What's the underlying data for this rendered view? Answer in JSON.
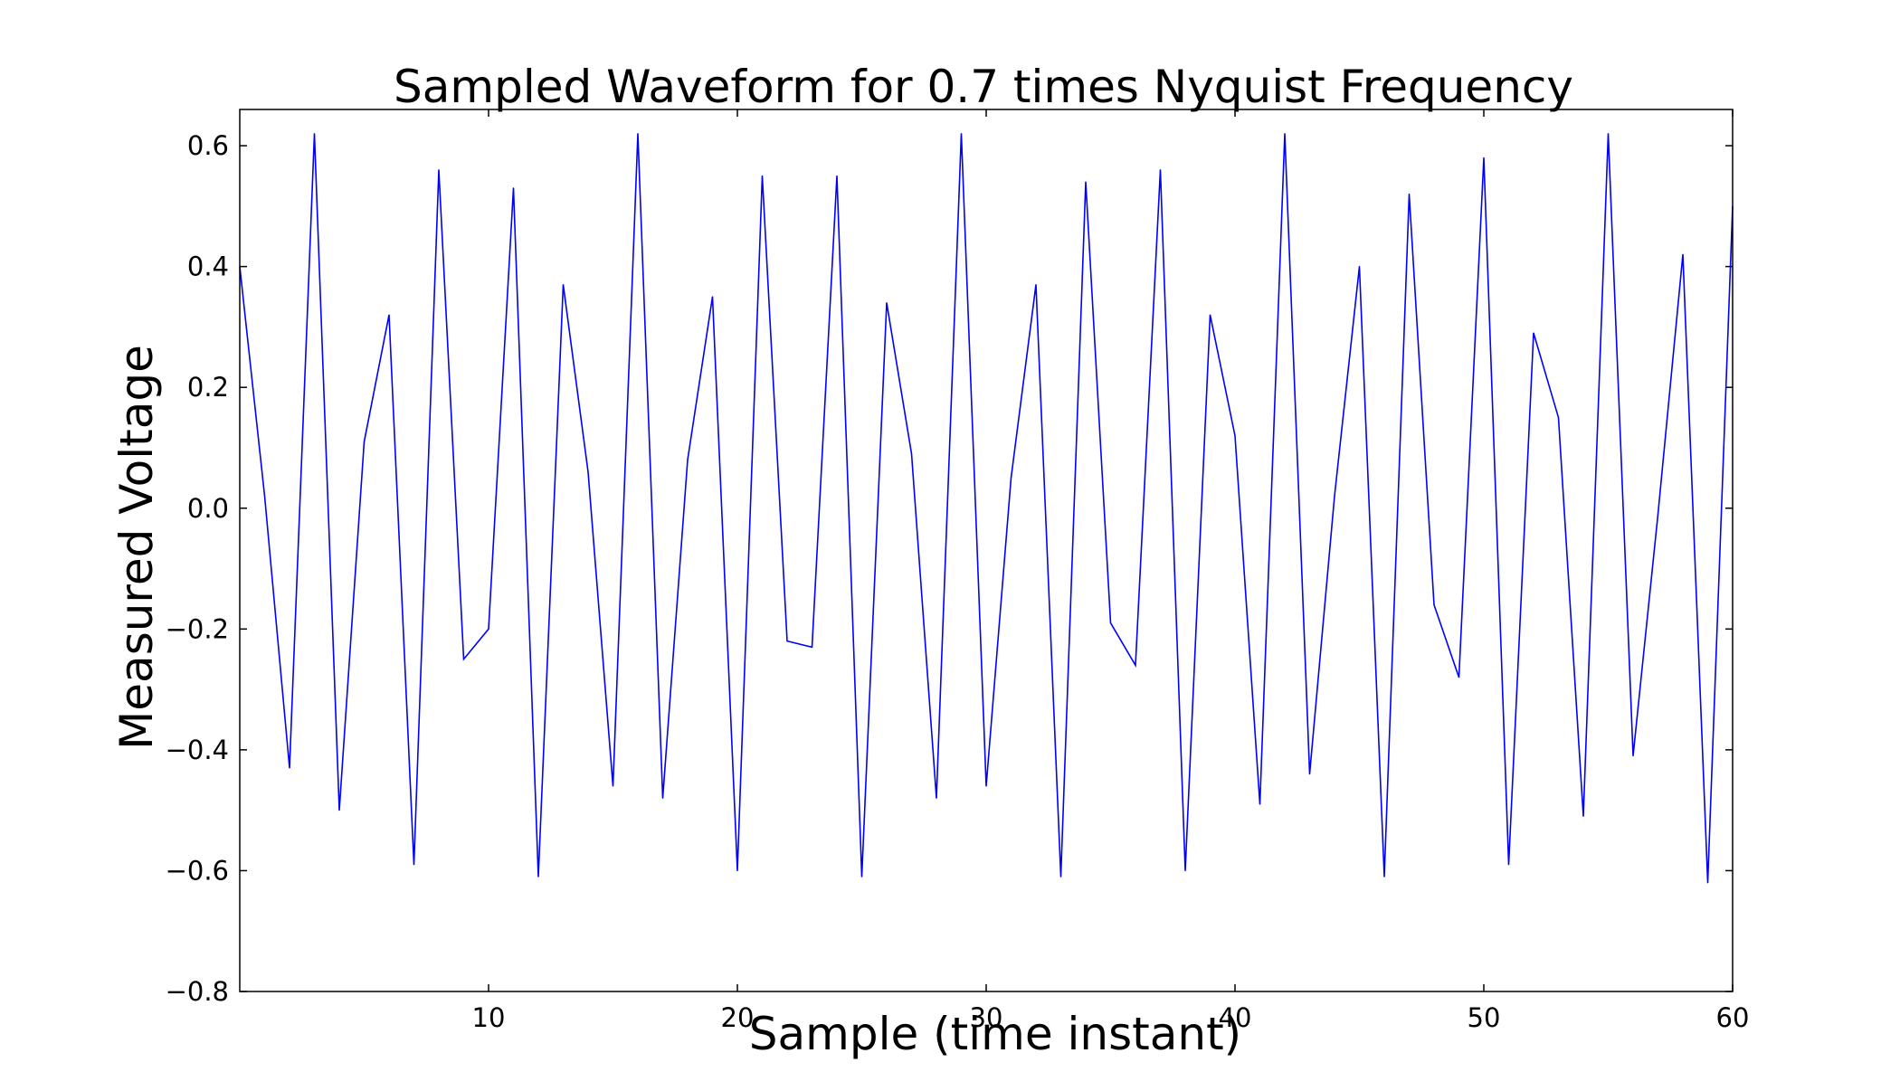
{
  "chart_data": {
    "type": "line",
    "title": "Sampled Waveform for 0.7 times Nyquist Frequency",
    "xlabel": "Sample (time instant)",
    "ylabel": "Measured Voltage",
    "xlim": [
      0,
      60
    ],
    "ylim": [
      -0.8,
      0.66
    ],
    "xticks": [
      10,
      20,
      30,
      40,
      50,
      60
    ],
    "xtick_labels": [
      "10",
      "20",
      "30",
      "40",
      "50",
      "60"
    ],
    "yticks": [
      -0.8,
      -0.6,
      -0.4,
      -0.2,
      0.0,
      0.2,
      0.4,
      0.6
    ],
    "ytick_labels": [
      "−0.8",
      "−0.6",
      "−0.4",
      "−0.2",
      "0.0",
      "0.2",
      "0.4",
      "0.6"
    ],
    "grid": false,
    "legend": false,
    "line_color": "#0000ff",
    "series": [
      {
        "x": [
          0,
          1,
          2,
          3,
          4,
          5,
          6,
          7,
          8,
          9,
          10,
          11,
          12,
          13,
          14,
          15,
          16,
          17,
          18,
          19,
          20,
          21,
          22,
          23,
          24,
          25,
          26,
          27,
          28,
          29,
          30,
          31,
          32,
          33,
          34,
          35,
          36,
          37,
          38,
          39,
          40,
          41,
          42,
          43,
          44,
          45,
          46,
          47,
          48,
          49,
          50,
          51,
          52,
          53,
          54,
          55,
          56,
          57,
          58,
          59,
          60
        ],
        "values": [
          0.4,
          0.02,
          -0.43,
          0.62,
          -0.5,
          0.11,
          0.32,
          -0.59,
          0.56,
          -0.25,
          -0.2,
          0.53,
          -0.61,
          0.37,
          0.06,
          -0.46,
          0.62,
          -0.48,
          0.08,
          0.35,
          -0.6,
          0.55,
          -0.22,
          -0.23,
          0.55,
          -0.61,
          0.34,
          0.09,
          -0.48,
          0.62,
          -0.46,
          0.05,
          0.37,
          -0.61,
          0.54,
          -0.19,
          -0.26,
          0.56,
          -0.6,
          0.32,
          0.12,
          -0.49,
          0.62,
          -0.44,
          0.02,
          0.4,
          -0.61,
          0.52,
          -0.16,
          -0.28,
          0.58,
          -0.59,
          0.29,
          0.15,
          -0.51,
          0.62,
          -0.41,
          -0.01,
          0.42,
          -0.62,
          0.5
        ]
      }
    ]
  }
}
